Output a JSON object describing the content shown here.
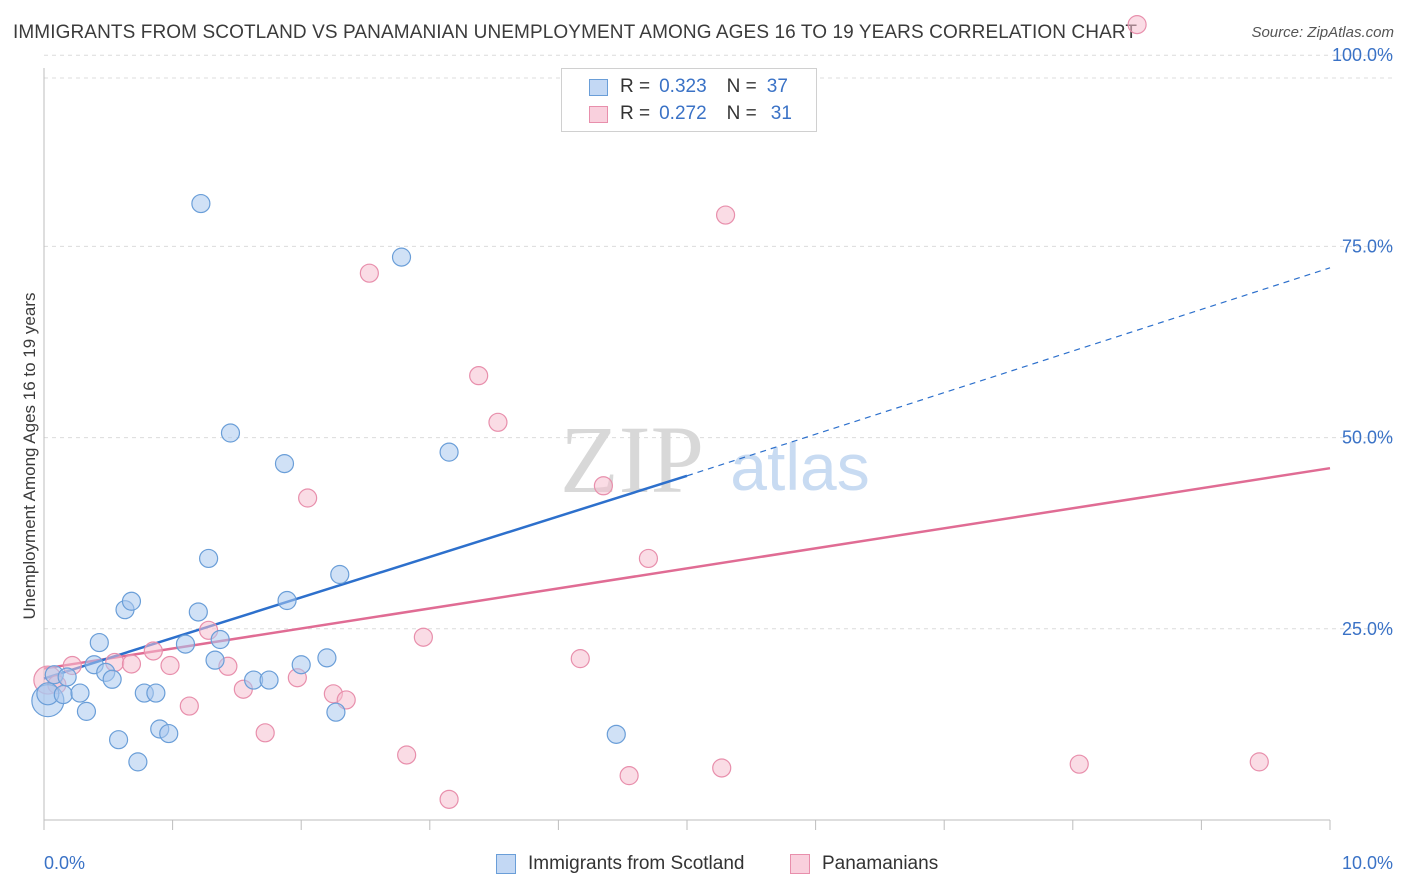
{
  "header": {
    "title": "IMMIGRANTS FROM SCOTLAND VS PANAMANIAN UNEMPLOYMENT AMONG AGES 16 TO 19 YEARS CORRELATION CHART",
    "source": "Source: ZipAtlas.com"
  },
  "watermark": {
    "zip": "ZIP",
    "atlas": "atlas"
  },
  "stats": [
    {
      "r_label": "R =",
      "r_value": "0.323",
      "n_label": "N =",
      "n_value": "37"
    },
    {
      "r_label": "R =",
      "r_value": "0.272",
      "n_label": "N =",
      "n_value": "31"
    }
  ],
  "chart_data": {
    "type": "scatter",
    "title": "IMMIGRANTS FROM SCOTLAND VS PANAMANIAN UNEMPLOYMENT AMONG AGES 16 TO 19 YEARS CORRELATION CHART",
    "xlabel": "",
    "ylabel": "Unemployment Among Ages 16 to 19 years",
    "xlim": [
      0,
      10
    ],
    "ylim": [
      0,
      103
    ],
    "x_tick_labels": [
      "0.0%",
      "10.0%"
    ],
    "y_ticks": [
      25,
      50,
      75,
      100
    ],
    "y_tick_labels": [
      "25.0%",
      "50.0%",
      "75.0%",
      "100.0%"
    ],
    "grid": true,
    "legend_position": "bottom-center",
    "colors": {
      "scotland_fill": "#aac8ee",
      "scotland_stroke": "#6a9ed8",
      "scotland_line": "#2d70cc",
      "panama_fill": "#f6bfd0",
      "panama_stroke": "#e88fac",
      "panama_line": "#e06c94",
      "tick_label": "#3a72c6"
    },
    "series": [
      {
        "name": "Immigrants from Scotland",
        "points": [
          [
            0.03,
            15.6,
            16
          ],
          [
            0.03,
            16.5,
            11
          ],
          [
            0.08,
            19.0,
            9
          ],
          [
            0.15,
            16.4,
            9
          ],
          [
            0.18,
            18.7,
            9
          ],
          [
            0.28,
            16.6,
            9
          ],
          [
            0.33,
            14.2,
            9
          ],
          [
            0.39,
            20.3,
            9
          ],
          [
            0.43,
            23.2,
            9
          ],
          [
            0.48,
            19.3,
            9
          ],
          [
            0.53,
            18.4,
            9
          ],
          [
            0.58,
            10.5,
            9
          ],
          [
            0.63,
            27.5,
            9
          ],
          [
            0.68,
            28.6,
            9
          ],
          [
            0.73,
            7.6,
            9
          ],
          [
            0.78,
            16.6,
            9
          ],
          [
            0.87,
            16.6,
            9
          ],
          [
            0.9,
            11.9,
            9
          ],
          [
            0.97,
            11.3,
            9
          ],
          [
            1.1,
            23.0,
            9
          ],
          [
            1.2,
            27.2,
            9
          ],
          [
            1.22,
            80.6,
            9
          ],
          [
            1.28,
            34.2,
            9
          ],
          [
            1.33,
            20.9,
            9
          ],
          [
            1.37,
            23.6,
            9
          ],
          [
            1.45,
            50.6,
            9
          ],
          [
            1.63,
            18.3,
            9
          ],
          [
            1.75,
            18.3,
            9
          ],
          [
            1.87,
            46.6,
            9
          ],
          [
            1.89,
            28.7,
            9
          ],
          [
            2.0,
            20.3,
            9
          ],
          [
            2.2,
            21.2,
            9
          ],
          [
            2.27,
            14.1,
            9
          ],
          [
            2.3,
            32.1,
            9
          ],
          [
            2.78,
            73.6,
            9
          ],
          [
            3.15,
            48.1,
            9
          ],
          [
            4.45,
            11.2,
            9
          ]
        ],
        "trend_solid": [
          [
            0,
            18.5
          ],
          [
            5.0,
            45.0
          ]
        ],
        "trend_dashed": [
          [
            5.0,
            45.0
          ],
          [
            10.0,
            72.2
          ]
        ]
      },
      {
        "name": "Panamanians",
        "points": [
          [
            0.03,
            18.3,
            14
          ],
          [
            0.1,
            17.7,
            9
          ],
          [
            0.22,
            20.2,
            9
          ],
          [
            0.55,
            20.6,
            9
          ],
          [
            0.68,
            20.4,
            9
          ],
          [
            0.85,
            22.1,
            9
          ],
          [
            0.98,
            20.2,
            9
          ],
          [
            1.13,
            14.9,
            9
          ],
          [
            1.28,
            24.8,
            9
          ],
          [
            1.43,
            20.1,
            9
          ],
          [
            1.55,
            17.1,
            9
          ],
          [
            1.72,
            11.4,
            9
          ],
          [
            1.97,
            18.6,
            9
          ],
          [
            2.05,
            42.1,
            9
          ],
          [
            2.25,
            16.5,
            9
          ],
          [
            2.35,
            15.7,
            9
          ],
          [
            2.53,
            71.5,
            9
          ],
          [
            2.82,
            8.5,
            9
          ],
          [
            2.95,
            23.9,
            9
          ],
          [
            3.15,
            2.7,
            9
          ],
          [
            3.38,
            58.1,
            9
          ],
          [
            3.53,
            52.0,
            9
          ],
          [
            4.17,
            21.1,
            9
          ],
          [
            4.35,
            43.7,
            9
          ],
          [
            4.55,
            5.8,
            9
          ],
          [
            4.7,
            34.2,
            9
          ],
          [
            5.27,
            6.8,
            9
          ],
          [
            5.3,
            79.1,
            9
          ],
          [
            8.05,
            7.3,
            9
          ],
          [
            8.5,
            104.0,
            9
          ],
          [
            9.45,
            7.6,
            9
          ]
        ],
        "trend_solid": [
          [
            0,
            19.8
          ],
          [
            10.0,
            46.0
          ]
        ]
      }
    ]
  },
  "axis": {
    "y_title": "Unemployment Among Ages 16 to 19 years",
    "x_min_label": "0.0%",
    "x_max_label": "10.0%"
  },
  "legend": {
    "items": [
      "Immigrants from Scotland",
      "Panamanians"
    ]
  }
}
